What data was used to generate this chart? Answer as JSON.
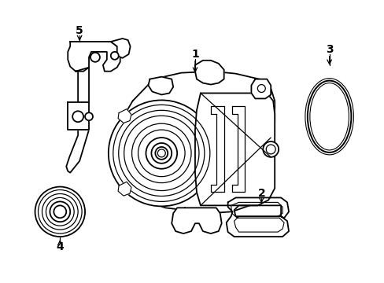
{
  "background_color": "#ffffff",
  "line_color": "#000000",
  "line_width": 1.3,
  "figsize": [
    4.89,
    3.6
  ],
  "dpi": 100
}
